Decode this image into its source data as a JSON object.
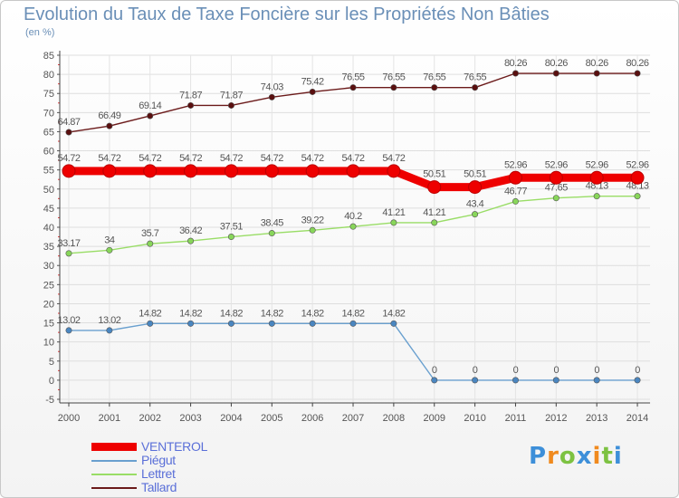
{
  "title": "Evolution du Taux de Taxe Foncière sur les Propriétés Non Bâties",
  "subtitle": "(en %)",
  "logo": {
    "text": "Proxiti",
    "letter_colors": [
      "#3d8fd9",
      "#f08a1e",
      "#7dc242",
      "#3d8fd9",
      "#f08a1e",
      "#7dc242",
      "#3d8fd9"
    ]
  },
  "chart_data": {
    "type": "line",
    "title": "Evolution du Taux de Taxe Foncière sur les Propriétés Non Bâties",
    "ylabel": "(en %)",
    "xlabel": "",
    "ylim": [
      -5,
      85
    ],
    "yticks": [
      -5,
      0,
      5,
      10,
      15,
      20,
      25,
      30,
      35,
      40,
      45,
      50,
      55,
      60,
      65,
      70,
      75,
      80,
      85
    ],
    "categories": [
      "2000",
      "2001",
      "2002",
      "2003",
      "2004",
      "2005",
      "2006",
      "2007",
      "2008",
      "2009",
      "2010",
      "2011",
      "2012",
      "2013",
      "2014"
    ],
    "grid": true,
    "legend_position": "bottom-left",
    "series": [
      {
        "name": "Tallard",
        "color": "#6b1a1a",
        "marker": "#5a0f0f",
        "emphasis": false,
        "values": [
          64.87,
          66.49,
          69.14,
          71.87,
          71.87,
          74.03,
          75.42,
          76.55,
          76.55,
          76.55,
          76.55,
          80.26,
          80.26,
          80.26,
          80.26
        ],
        "labels": [
          "64.87",
          "66.49",
          "69.14",
          "71.87",
          "71.87",
          "74.03",
          "75.42",
          "76.55",
          "76.55",
          "76.55",
          "76.55",
          "80.26",
          "80.26",
          "80.26",
          "80.26"
        ]
      },
      {
        "name": "Lettret",
        "color": "#99dd66",
        "marker": "#88d65a",
        "emphasis": false,
        "values": [
          33.17,
          34,
          35.7,
          36.42,
          37.51,
          38.45,
          39.22,
          40.2,
          41.21,
          41.21,
          43.4,
          46.77,
          47.65,
          48.13,
          48.13
        ],
        "labels": [
          "33.17",
          "34",
          "35.7",
          "36.42",
          "37.51",
          "38.45",
          "39.22",
          "40.2",
          "41.21",
          "41.21",
          "43.4",
          "46.77",
          "47.65",
          "48.13",
          "48.13"
        ]
      },
      {
        "name": "Piégut",
        "color": "#6aa0cf",
        "marker": "#4a86c0",
        "emphasis": false,
        "values": [
          13.02,
          13.02,
          14.82,
          14.82,
          14.82,
          14.82,
          14.82,
          14.82,
          14.82,
          0,
          0,
          0,
          0,
          0,
          0
        ],
        "labels": [
          "13.02",
          "13.02",
          "14.82",
          "14.82",
          "14.82",
          "14.82",
          "14.82",
          "14.82",
          "14.82",
          "0",
          "0",
          "0",
          "0",
          "0",
          "0"
        ]
      },
      {
        "name": "VENTEROL",
        "color": "#ee0000",
        "marker": "#ee0000",
        "emphasis": true,
        "values": [
          54.72,
          54.72,
          54.72,
          54.72,
          54.72,
          54.72,
          54.72,
          54.72,
          54.72,
          50.51,
          50.51,
          52.96,
          52.96,
          52.96,
          52.96
        ],
        "labels": [
          "54.72",
          "54.72",
          "54.72",
          "54.72",
          "54.72",
          "54.72",
          "54.72",
          "54.72",
          "54.72",
          "50.51",
          "50.51",
          "52.96",
          "52.96",
          "52.96",
          "52.96"
        ]
      }
    ]
  },
  "legend": [
    {
      "name": "VENTEROL",
      "color": "#ee0000",
      "thick": true
    },
    {
      "name": "Piégut",
      "color": "#6aa0cf",
      "thick": false
    },
    {
      "name": "Lettret",
      "color": "#99dd66",
      "thick": false
    },
    {
      "name": "Tallard",
      "color": "#6b1a1a",
      "thick": false
    }
  ]
}
